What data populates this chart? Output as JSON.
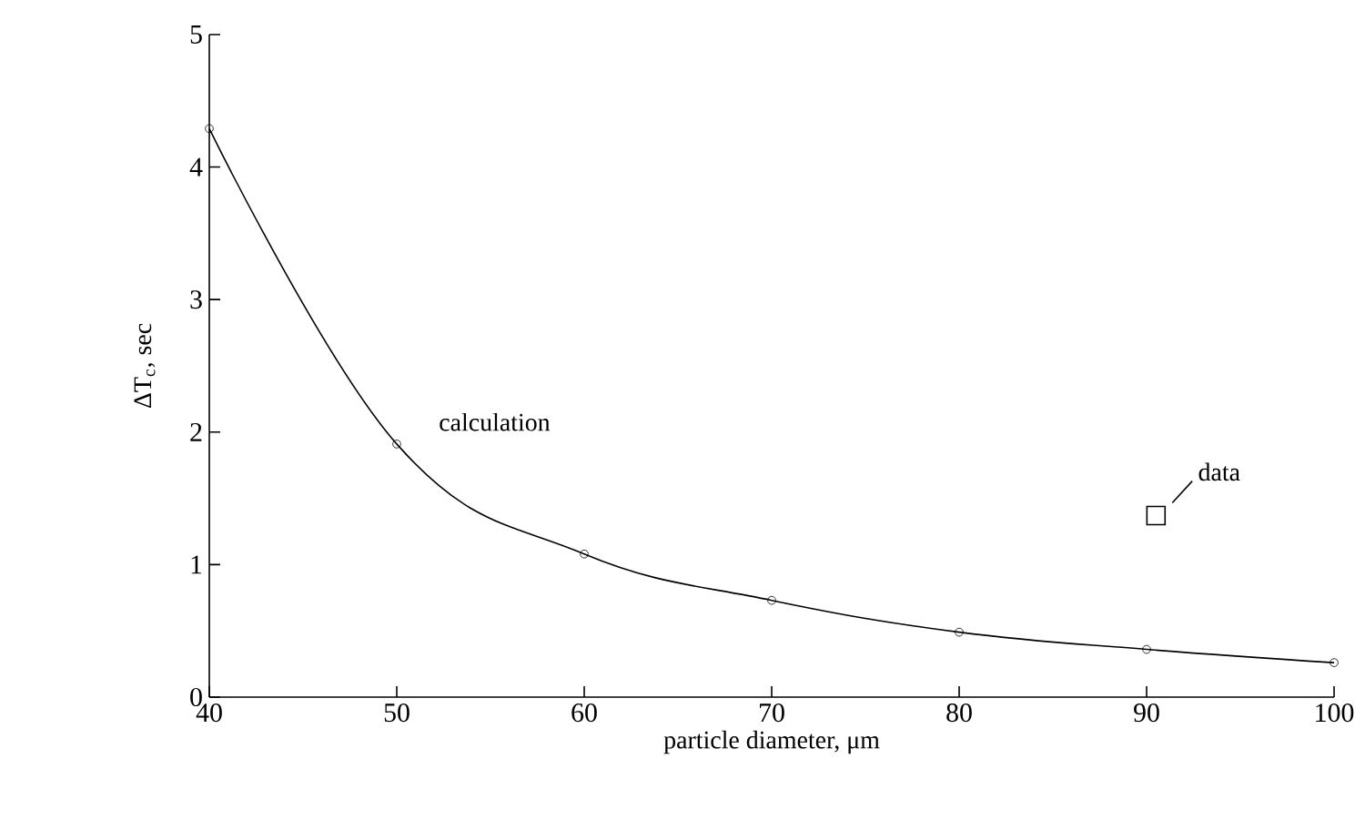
{
  "chart_data": {
    "type": "line",
    "xlabel": "particle diameter, μm",
    "ylabel": "ΔT$_{c}$, sec",
    "xlim": [
      40,
      100
    ],
    "xticks": [
      40,
      50,
      60,
      70,
      80,
      90,
      100
    ],
    "ylim": [
      0,
      5
    ],
    "yticks": [
      0,
      1,
      2,
      3,
      4,
      5
    ],
    "series": [
      {
        "name": "calculation",
        "color": "#000000",
        "marker": "circle",
        "x": [
          40,
          50,
          60,
          70,
          80,
          90,
          100
        ],
        "values": [
          4.29,
          1.91,
          1.08,
          0.73,
          0.49,
          0.36,
          0.26
        ]
      },
      {
        "name": "data",
        "type": "scatter",
        "color": "#000000",
        "marker": "square",
        "x": [
          90.5
        ],
        "values": [
          1.37
        ]
      }
    ]
  }
}
